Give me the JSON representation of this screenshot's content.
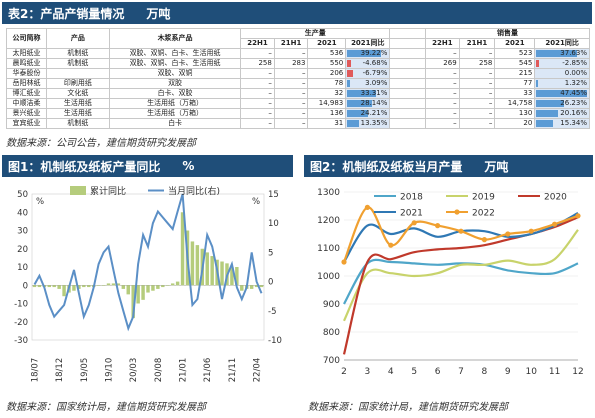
{
  "colors": {
    "header_bg": "#1f4e79",
    "bar": "#b5cc7c",
    "line": "#5b8fc6",
    "pos_bar": "#5b9bd5",
    "neg_bar": "#e05a5a"
  },
  "top": {
    "title": "表2：产品产销量情况",
    "unit": "万吨",
    "source": "数据来源：公司公告，建信期货研究发展部",
    "headers": {
      "company": "公司简称",
      "product": "产品",
      "wood": "木浆系产品",
      "production": "生产量",
      "sales": "销售量",
      "cols": [
        "22H1",
        "21H1",
        "2021",
        "2021同比"
      ]
    },
    "rows": [
      {
        "company": "太阳纸业",
        "product": "机制纸",
        "wood": "双胶、双铜、白卡、生活用纸",
        "p": [
          "–",
          "–",
          "536",
          "39.22%"
        ],
        "s": [
          "–",
          "–",
          "523",
          "37.63%"
        ],
        "pp": 39.22,
        "sp": 37.63
      },
      {
        "company": "晨鸣纸业",
        "product": "机制纸",
        "wood": "双胶、双铜、白卡、生活用纸",
        "p": [
          "258",
          "283",
          "550",
          "-4.68%"
        ],
        "s": [
          "269",
          "258",
          "545",
          "-2.85%"
        ],
        "pp": -4.68,
        "sp": -2.85
      },
      {
        "company": "华泰股份",
        "product": "",
        "wood": "双胶、双铜",
        "p": [
          "–",
          "–",
          "206",
          "-6.79%"
        ],
        "s": [
          "–",
          "–",
          "215",
          "0.00%"
        ],
        "pp": -6.79,
        "sp": 0.0
      },
      {
        "company": "岳阳林纸",
        "product": "印刷用纸",
        "wood": "双胶",
        "p": [
          "–",
          "–",
          "78",
          "3.09%"
        ],
        "s": [
          "–",
          "–",
          "77",
          "1.32%"
        ],
        "pp": 3.09,
        "sp": 1.32
      },
      {
        "company": "博汇纸业",
        "product": "文化纸",
        "wood": "白卡、双胶",
        "p": [
          "–",
          "–",
          "32",
          "33.31%"
        ],
        "s": [
          "–",
          "–",
          "33",
          "47.45%"
        ],
        "pp": 33.31,
        "sp": 47.45
      },
      {
        "company": "中顺洁柔",
        "product": "生活用纸",
        "wood": "生活用纸（万箱）",
        "p": [
          "–",
          "–",
          "14,983",
          "28.14%"
        ],
        "s": [
          "–",
          "–",
          "14,758",
          "26.23%"
        ],
        "pp": 28.14,
        "sp": 26.23
      },
      {
        "company": "景兴纸业",
        "product": "生活用纸",
        "wood": "生活用纸（万箱）",
        "p": [
          "–",
          "–",
          "136",
          "24.21%"
        ],
        "s": [
          "–",
          "–",
          "130",
          "20.16%"
        ],
        "pp": 24.21,
        "sp": 20.16
      },
      {
        "company": "宜宾纸业",
        "product": "机制纸",
        "wood": "白卡",
        "p": [
          "–",
          "–",
          "31",
          "13.35%"
        ],
        "s": [
          "–",
          "–",
          "20",
          "15.34%"
        ],
        "pp": 13.35,
        "sp": 15.34
      }
    ]
  },
  "left": {
    "title": "图1：机制纸及纸板产量同比",
    "unit": "%",
    "source": "数据来源：国家统计局，建信期货研究发展部"
  },
  "right": {
    "title": "图2：机制纸及纸板当月产量",
    "unit": "万吨",
    "source": "数据来源：国家统计局，建信期货研究发展部"
  },
  "chart_data": [
    {
      "type": "bar+line",
      "left_unit": "%",
      "ylim_left": [
        -30,
        50
      ],
      "yticks_left": [
        -30,
        -20,
        -10,
        0,
        10,
        20,
        30,
        40,
        50
      ],
      "ylim_right": [
        -10,
        15
      ],
      "yticks_right": [
        -10,
        -5,
        0,
        5,
        10,
        15
      ],
      "x": [
        "18/07",
        "18/08",
        "18/09",
        "18/10",
        "18/11",
        "18/12",
        "19/01",
        "19/02",
        "19/03",
        "19/04",
        "19/05",
        "19/06",
        "19/07",
        "19/08",
        "19/09",
        "19/10",
        "19/11",
        "19/12",
        "20/01",
        "20/02",
        "20/03",
        "20/04",
        "20/05",
        "20/06",
        "20/07",
        "20/08",
        "20/09",
        "20/10",
        "20/11",
        "20/12",
        "21/01",
        "21/02",
        "21/03",
        "21/04",
        "21/05",
        "21/06",
        "21/07",
        "21/08",
        "21/09",
        "21/10",
        "21/11",
        "21/12",
        "22/01",
        "22/02",
        "22/03",
        "22/04",
        "22/05"
      ],
      "xtick_labels": [
        "18/07",
        "18/12",
        "19/05",
        "19/10",
        "20/03",
        "20/08",
        "21/01",
        "21/06",
        "21/11",
        "22/04"
      ],
      "series": [
        {
          "name": "累计同比",
          "axis": "left",
          "kind": "bar",
          "values": [
            -1,
            -1,
            -1,
            -1,
            -1,
            -2,
            -6,
            -4,
            -3,
            -2,
            -1,
            -1,
            -1,
            0,
            0,
            1,
            1,
            1,
            -2,
            -5,
            -18,
            -10,
            -8,
            -4,
            -3,
            -2,
            -1,
            0,
            1,
            2,
            40,
            30,
            24,
            22,
            20,
            18,
            16,
            14,
            13,
            12,
            10,
            10,
            -3,
            -2,
            -2,
            -1,
            -1
          ]
        },
        {
          "name": "当月同比(右)",
          "axis": "right",
          "kind": "line",
          "values": [
            -0.5,
            1,
            -1,
            -4,
            -6,
            -5,
            -4,
            -1,
            2,
            -2,
            -6,
            -4,
            -1,
            3,
            5,
            6,
            2,
            -2,
            -5,
            -8,
            -6,
            3,
            8,
            6,
            10,
            12,
            11,
            10,
            9,
            12,
            15,
            4,
            -4,
            -3,
            2,
            8,
            6,
            2,
            -3,
            1,
            3,
            -1,
            -3,
            -1,
            5,
            0,
            -2
          ]
        }
      ]
    },
    {
      "type": "line",
      "ylim": [
        700,
        1300
      ],
      "yticks": [
        700,
        800,
        900,
        1000,
        1100,
        1200,
        1300
      ],
      "x": [
        2,
        3,
        4,
        5,
        6,
        7,
        8,
        9,
        10,
        11,
        12
      ],
      "series": [
        {
          "name": "2018",
          "color": "#4fa6c9",
          "values": [
            900,
            1045,
            1050,
            1045,
            1040,
            1045,
            1040,
            1020,
            1010,
            1010,
            1045
          ]
        },
        {
          "name": "2019",
          "color": "#c8d36b",
          "values": [
            840,
            1010,
            1010,
            1000,
            1010,
            1040,
            1040,
            1055,
            1040,
            1060,
            1165
          ]
        },
        {
          "name": "2020",
          "color": "#c0392b",
          "values": [
            720,
            1050,
            1060,
            1085,
            1095,
            1100,
            1110,
            1130,
            1150,
            1175,
            1210
          ]
        },
        {
          "name": "2021",
          "color": "#2f78b4",
          "values": [
            1050,
            1180,
            1150,
            1170,
            1140,
            1160,
            1160,
            1140,
            1150,
            1180,
            1225
          ]
        },
        {
          "name": "2022",
          "color": "#f0a030",
          "values": [
            1050,
            1245,
            1110,
            1190,
            1180,
            1160,
            1130,
            1150,
            1160,
            1185,
            1215
          ]
        }
      ]
    }
  ]
}
